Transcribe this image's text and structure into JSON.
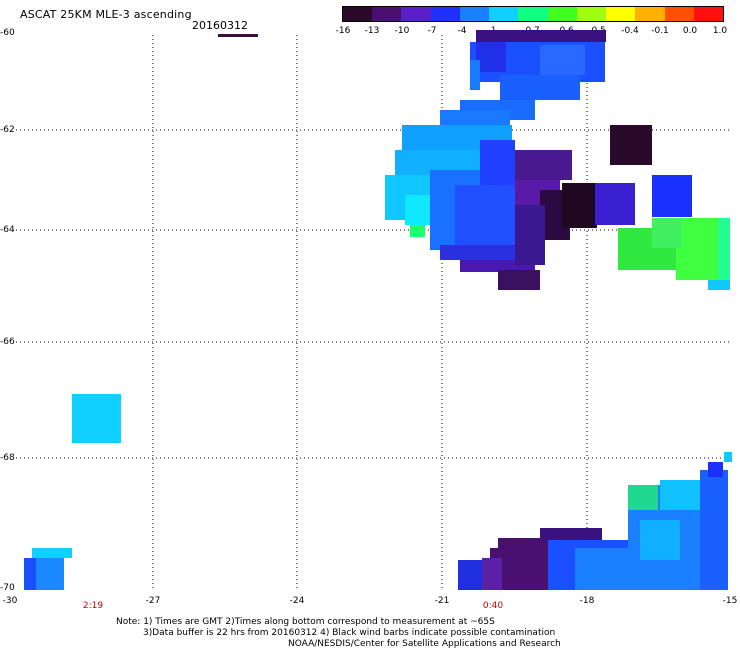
{
  "header": {
    "title": "ASCAT 25KM MLE-3 ascending",
    "date": "20160312"
  },
  "colorbar": {
    "labels": [
      "-16",
      "-13",
      "-10",
      "-7",
      "-4",
      "-1",
      "-0.7",
      "-0.6",
      "-0.5",
      "-0.4",
      "-0.1",
      "0.0",
      "1.0"
    ],
    "colors": [
      "#2a0a2a",
      "#4a1070",
      "#5a20c8",
      "#2030ff",
      "#1a80ff",
      "#10d0ff",
      "#10ff80",
      "#40ff20",
      "#a0ff10",
      "#ffff00",
      "#ffb000",
      "#ff5000",
      "#ff1010"
    ]
  },
  "map": {
    "lat_labels": [
      "-60",
      "-62",
      "-64",
      "-66",
      "-68",
      "-70"
    ],
    "lon_labels": [
      "-30",
      "-27",
      "-24",
      "-21",
      "-18",
      "-15"
    ],
    "time_labels": [
      "2:19",
      "0:40"
    ]
  },
  "footer": {
    "note_line1": "Note: 1) Times are GMT 2)Times along bottom correspond to measurement at ~65S",
    "note_line2": "3)Data buffer is 22 hrs from 20160312 4) Black wind barbs indicate possible contamination",
    "credit": "NOAA/NESDIS/Center for Satellite Applications and Research"
  }
}
